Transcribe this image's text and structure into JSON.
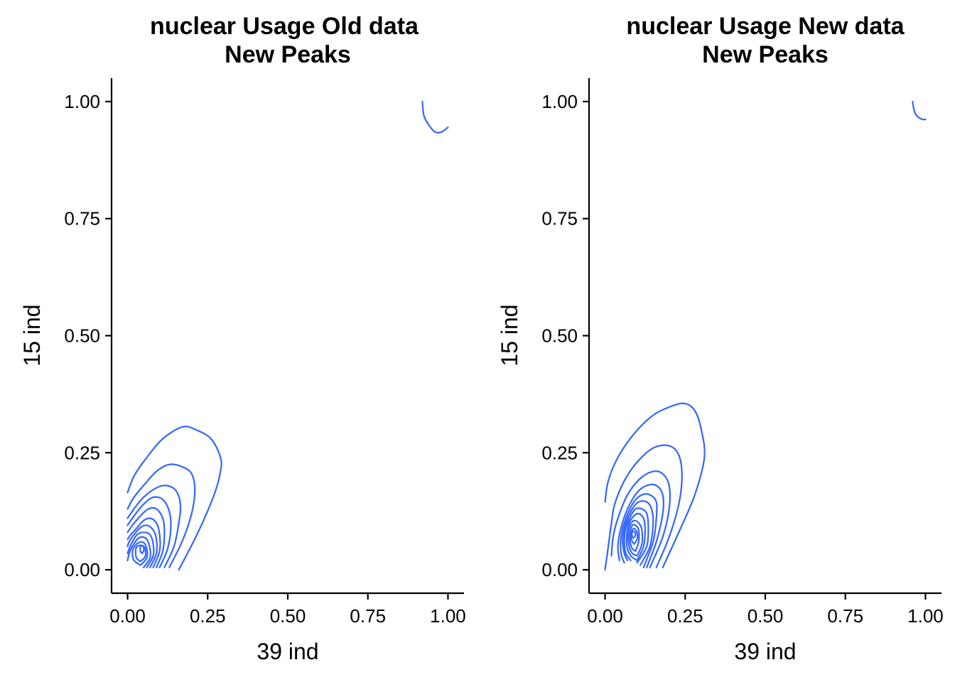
{
  "chart_data": [
    {
      "type": "contour",
      "title_lines": [
        "nuclear Usage Old data",
        "New Peaks"
      ],
      "xlabel": "39 ind",
      "ylabel": "15 ind",
      "xlim": [
        -0.05,
        1.05
      ],
      "ylim": [
        -0.05,
        1.05
      ],
      "x_ticks": [
        0,
        0.25,
        0.5,
        0.75,
        1
      ],
      "x_tick_labels": [
        "0.00",
        "0.25",
        "0.50",
        "0.75",
        "1.00"
      ],
      "y_ticks": [
        0,
        0.25,
        0.5,
        0.75,
        1
      ],
      "y_tick_labels": [
        "0.00",
        "0.25",
        "0.50",
        "0.75",
        "1.00"
      ],
      "line_color": "#3366FF",
      "grid": false,
      "contours": [
        [
          [
            0.16,
            0
          ],
          [
            0.22,
            0.08
          ],
          [
            0.27,
            0.16
          ],
          [
            0.29,
            0.21
          ],
          [
            0.29,
            0.24
          ],
          [
            0.26,
            0.28
          ],
          [
            0.21,
            0.3
          ],
          [
            0.17,
            0.305
          ],
          [
            0.11,
            0.28
          ],
          [
            0.06,
            0.24
          ],
          [
            0.02,
            0.2
          ],
          [
            0,
            0.165
          ]
        ],
        [
          [
            0.13,
            0.005
          ],
          [
            0.17,
            0.06
          ],
          [
            0.2,
            0.12
          ],
          [
            0.21,
            0.17
          ],
          [
            0.2,
            0.205
          ],
          [
            0.17,
            0.22
          ],
          [
            0.13,
            0.225
          ],
          [
            0.09,
            0.21
          ],
          [
            0.05,
            0.18
          ],
          [
            0.02,
            0.155
          ],
          [
            0,
            0.13
          ]
        ],
        [
          [
            0.115,
            0.005
          ],
          [
            0.145,
            0.05
          ],
          [
            0.16,
            0.1
          ],
          [
            0.165,
            0.14
          ],
          [
            0.15,
            0.17
          ],
          [
            0.12,
            0.18
          ],
          [
            0.09,
            0.175
          ],
          [
            0.05,
            0.155
          ],
          [
            0.02,
            0.13
          ],
          [
            0,
            0.11
          ]
        ],
        [
          [
            0.1,
            0.005
          ],
          [
            0.125,
            0.045
          ],
          [
            0.135,
            0.09
          ],
          [
            0.13,
            0.125
          ],
          [
            0.11,
            0.15
          ],
          [
            0.08,
            0.155
          ],
          [
            0.05,
            0.14
          ],
          [
            0.02,
            0.115
          ],
          [
            0,
            0.095
          ]
        ],
        [
          [
            0.09,
            0.005
          ],
          [
            0.11,
            0.04
          ],
          [
            0.115,
            0.08
          ],
          [
            0.11,
            0.11
          ],
          [
            0.09,
            0.13
          ],
          [
            0.065,
            0.13
          ],
          [
            0.04,
            0.115
          ],
          [
            0.015,
            0.095
          ],
          [
            0,
            0.08
          ]
        ],
        [
          [
            0.08,
            0.005
          ],
          [
            0.1,
            0.04
          ],
          [
            0.1,
            0.075
          ],
          [
            0.09,
            0.1
          ],
          [
            0.07,
            0.11
          ],
          [
            0.05,
            0.105
          ],
          [
            0.03,
            0.09
          ],
          [
            0.01,
            0.075
          ],
          [
            0,
            0.065
          ]
        ],
        [
          [
            0.07,
            0.005
          ],
          [
            0.09,
            0.035
          ],
          [
            0.09,
            0.065
          ],
          [
            0.08,
            0.085
          ],
          [
            0.06,
            0.095
          ],
          [
            0.04,
            0.09
          ],
          [
            0.02,
            0.075
          ],
          [
            0.005,
            0.06
          ],
          [
            0,
            0.05
          ]
        ],
        [
          [
            0.06,
            0.005
          ],
          [
            0.08,
            0.03
          ],
          [
            0.08,
            0.055
          ],
          [
            0.07,
            0.075
          ],
          [
            0.05,
            0.08
          ],
          [
            0.03,
            0.075
          ],
          [
            0.015,
            0.06
          ],
          [
            0.005,
            0.045
          ],
          [
            0,
            0.035
          ]
        ],
        [
          [
            0.05,
            0.005
          ],
          [
            0.07,
            0.025
          ],
          [
            0.07,
            0.045
          ],
          [
            0.06,
            0.065
          ],
          [
            0.045,
            0.07
          ],
          [
            0.03,
            0.065
          ],
          [
            0.015,
            0.05
          ],
          [
            0.005,
            0.035
          ],
          [
            0,
            0.02
          ]
        ],
        [
          [
            0.04,
            0.01
          ],
          [
            0.06,
            0.025
          ],
          [
            0.06,
            0.045
          ],
          [
            0.05,
            0.058
          ],
          [
            0.035,
            0.058
          ],
          [
            0.02,
            0.048
          ],
          [
            0.015,
            0.035
          ],
          [
            0.02,
            0.02
          ],
          [
            0.04,
            0.01
          ]
        ],
        [
          [
            0.04,
            0.018
          ],
          [
            0.055,
            0.028
          ],
          [
            0.055,
            0.045
          ],
          [
            0.045,
            0.052
          ],
          [
            0.03,
            0.05
          ],
          [
            0.025,
            0.04
          ],
          [
            0.028,
            0.025
          ],
          [
            0.04,
            0.018
          ]
        ],
        [
          [
            0.045,
            0.035
          ],
          [
            0.05,
            0.04
          ],
          [
            0.05,
            0.048
          ],
          [
            0.045,
            0.052
          ],
          [
            0.04,
            0.048
          ],
          [
            0.04,
            0.04
          ],
          [
            0.045,
            0.035
          ]
        ],
        [
          [
            0.92,
            1
          ],
          [
            0.925,
            0.97
          ],
          [
            0.94,
            0.95
          ],
          [
            0.96,
            0.935
          ],
          [
            0.98,
            0.935
          ],
          [
            1,
            0.945
          ]
        ]
      ]
    },
    {
      "type": "contour",
      "title_lines": [
        "nuclear Usage New data",
        "New Peaks"
      ],
      "xlabel": "39 ind",
      "ylabel": "15 ind",
      "xlim": [
        -0.05,
        1.05
      ],
      "ylim": [
        -0.05,
        1.05
      ],
      "x_ticks": [
        0,
        0.25,
        0.5,
        0.75,
        1
      ],
      "x_tick_labels": [
        "0.00",
        "0.25",
        "0.50",
        "0.75",
        "1.00"
      ],
      "y_ticks": [
        0,
        0.25,
        0.5,
        0.75,
        1
      ],
      "y_tick_labels": [
        "0.00",
        "0.25",
        "0.50",
        "0.75",
        "1.00"
      ],
      "line_color": "#3366FF",
      "grid": false,
      "contours": [
        [
          [
            0.18,
            0.005
          ],
          [
            0.23,
            0.08
          ],
          [
            0.28,
            0.16
          ],
          [
            0.31,
            0.24
          ],
          [
            0.3,
            0.3
          ],
          [
            0.28,
            0.34
          ],
          [
            0.25,
            0.355
          ],
          [
            0.21,
            0.35
          ],
          [
            0.15,
            0.33
          ],
          [
            0.09,
            0.29
          ],
          [
            0.04,
            0.24
          ],
          [
            0.01,
            0.19
          ],
          [
            0,
            0.145
          ]
        ],
        [
          [
            0.16,
            0.005
          ],
          [
            0.2,
            0.07
          ],
          [
            0.23,
            0.14
          ],
          [
            0.24,
            0.2
          ],
          [
            0.23,
            0.245
          ],
          [
            0.2,
            0.265
          ],
          [
            0.15,
            0.26
          ],
          [
            0.1,
            0.23
          ],
          [
            0.06,
            0.19
          ],
          [
            0.03,
            0.14
          ],
          [
            0.02,
            0.1
          ],
          [
            0.01,
            0.05
          ],
          [
            0,
            0
          ]
        ],
        [
          [
            0.14,
            0.005
          ],
          [
            0.18,
            0.07
          ],
          [
            0.2,
            0.13
          ],
          [
            0.2,
            0.18
          ],
          [
            0.18,
            0.205
          ],
          [
            0.15,
            0.21
          ],
          [
            0.11,
            0.195
          ],
          [
            0.07,
            0.16
          ],
          [
            0.04,
            0.11
          ],
          [
            0.025,
            0.07
          ],
          [
            0.02,
            0.03
          ]
        ],
        [
          [
            0.13,
            0.005
          ],
          [
            0.16,
            0.06
          ],
          [
            0.18,
            0.12
          ],
          [
            0.18,
            0.16
          ],
          [
            0.16,
            0.18
          ],
          [
            0.13,
            0.18
          ],
          [
            0.1,
            0.165
          ],
          [
            0.07,
            0.13
          ],
          [
            0.05,
            0.09
          ],
          [
            0.04,
            0.05
          ],
          [
            0.045,
            0.02
          ]
        ],
        [
          [
            0.12,
            0.005
          ],
          [
            0.15,
            0.06
          ],
          [
            0.16,
            0.11
          ],
          [
            0.16,
            0.145
          ],
          [
            0.14,
            0.16
          ],
          [
            0.115,
            0.16
          ],
          [
            0.09,
            0.145
          ],
          [
            0.065,
            0.11
          ],
          [
            0.05,
            0.07
          ],
          [
            0.05,
            0.035
          ],
          [
            0.06,
            0.015
          ]
        ],
        [
          [
            0.11,
            0.01
          ],
          [
            0.14,
            0.05
          ],
          [
            0.15,
            0.1
          ],
          [
            0.145,
            0.13
          ],
          [
            0.13,
            0.145
          ],
          [
            0.105,
            0.145
          ],
          [
            0.085,
            0.13
          ],
          [
            0.065,
            0.1
          ],
          [
            0.055,
            0.065
          ],
          [
            0.06,
            0.035
          ],
          [
            0.07,
            0.02
          ]
        ],
        [
          [
            0.1,
            0.015
          ],
          [
            0.13,
            0.05
          ],
          [
            0.135,
            0.09
          ],
          [
            0.13,
            0.12
          ],
          [
            0.115,
            0.13
          ],
          [
            0.095,
            0.13
          ],
          [
            0.08,
            0.115
          ],
          [
            0.065,
            0.09
          ],
          [
            0.06,
            0.06
          ],
          [
            0.065,
            0.035
          ],
          [
            0.08,
            0.02
          ]
        ],
        [
          [
            0.1,
            0.02
          ],
          [
            0.12,
            0.05
          ],
          [
            0.125,
            0.085
          ],
          [
            0.12,
            0.11
          ],
          [
            0.105,
            0.12
          ],
          [
            0.09,
            0.115
          ],
          [
            0.075,
            0.1
          ],
          [
            0.068,
            0.075
          ],
          [
            0.068,
            0.05
          ],
          [
            0.08,
            0.03
          ],
          [
            0.1,
            0.02
          ]
        ],
        [
          [
            0.1,
            0.03
          ],
          [
            0.115,
            0.055
          ],
          [
            0.115,
            0.085
          ],
          [
            0.105,
            0.1
          ],
          [
            0.09,
            0.105
          ],
          [
            0.078,
            0.095
          ],
          [
            0.072,
            0.075
          ],
          [
            0.075,
            0.05
          ],
          [
            0.085,
            0.035
          ],
          [
            0.1,
            0.03
          ]
        ],
        [
          [
            0.095,
            0.04
          ],
          [
            0.105,
            0.06
          ],
          [
            0.105,
            0.085
          ],
          [
            0.095,
            0.095
          ],
          [
            0.085,
            0.095
          ],
          [
            0.078,
            0.08
          ],
          [
            0.078,
            0.06
          ],
          [
            0.085,
            0.045
          ],
          [
            0.095,
            0.04
          ]
        ],
        [
          [
            0.09,
            0.055
          ],
          [
            0.1,
            0.065
          ],
          [
            0.1,
            0.08
          ],
          [
            0.09,
            0.088
          ],
          [
            0.082,
            0.08
          ],
          [
            0.082,
            0.065
          ],
          [
            0.09,
            0.055
          ]
        ],
        [
          [
            0.088,
            0.068
          ],
          [
            0.094,
            0.072
          ],
          [
            0.094,
            0.08
          ],
          [
            0.088,
            0.082
          ],
          [
            0.084,
            0.078
          ],
          [
            0.085,
            0.07
          ],
          [
            0.088,
            0.068
          ]
        ],
        [
          [
            0.96,
            1
          ],
          [
            0.965,
            0.98
          ],
          [
            0.975,
            0.968
          ],
          [
            0.99,
            0.962
          ],
          [
            1,
            0.962
          ]
        ]
      ]
    }
  ]
}
